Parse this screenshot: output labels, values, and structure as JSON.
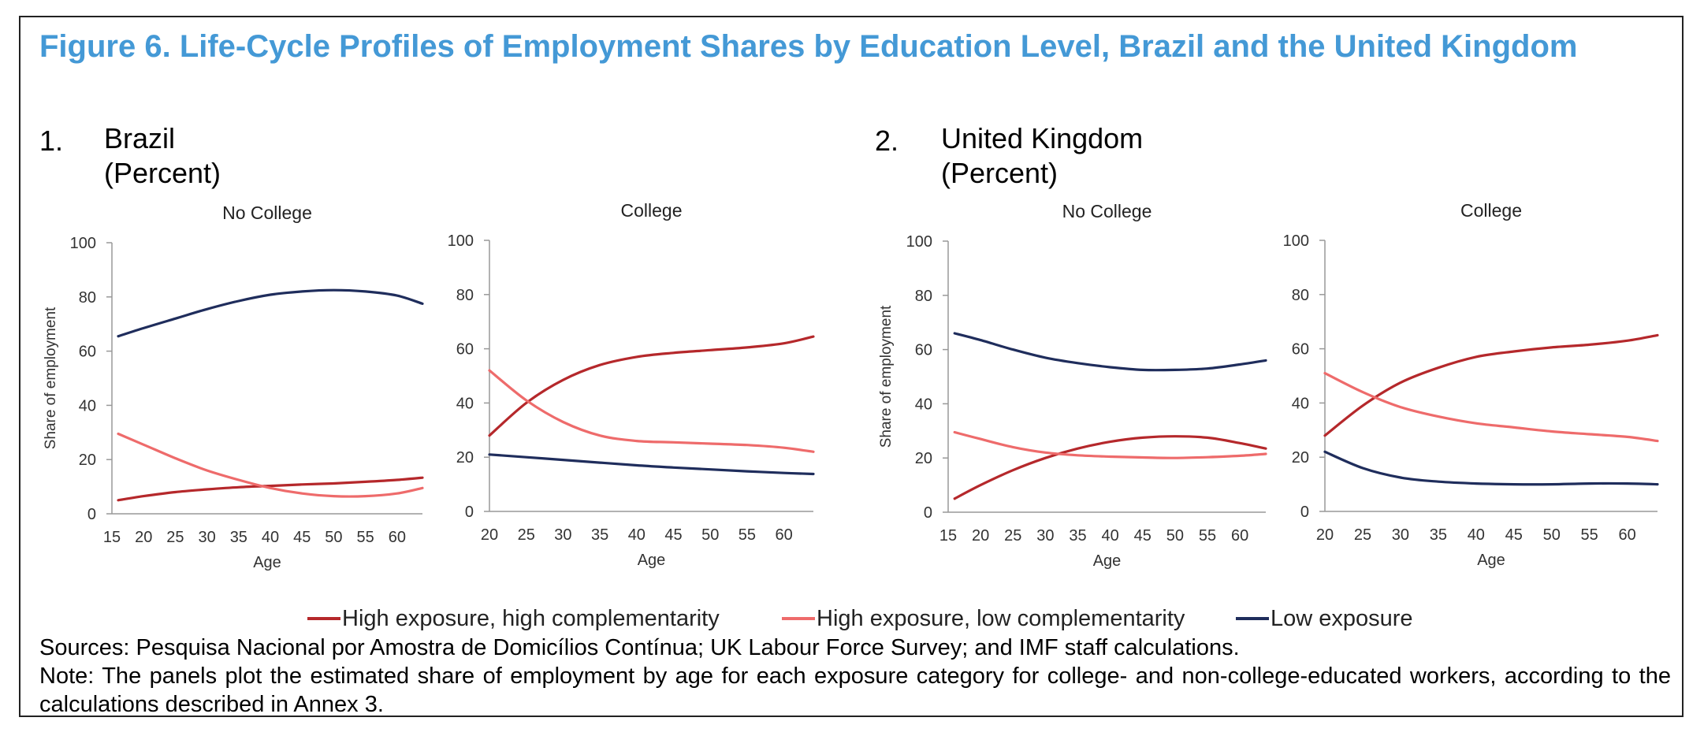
{
  "figure": {
    "title": "Figure 6. Life-Cycle Profiles of Employment Shares by Education Level, Brazil and the United Kingdom",
    "panels": [
      {
        "number": "1.",
        "name": "Brazil",
        "unit": "(Percent)"
      },
      {
        "number": "2.",
        "name": "United Kingdom",
        "unit": "(Percent)"
      }
    ],
    "sources": "Sources: Pesquisa Nacional por Amostra de Domicílios Contínua; UK Labour Force Survey; and IMF staff calculations.",
    "note": "Note: The panels plot the estimated share of employment by age for each exposure category for college- and non-college-educated workers, according to the calculations described in Annex 3."
  },
  "legend": [
    {
      "label": "High exposure, high complementarity",
      "color": "#b5282b"
    },
    {
      "label": "High exposure, low complementarity",
      "color": "#ee6b6b"
    },
    {
      "label": "Low exposure",
      "color": "#1f2d5c"
    }
  ],
  "chart_data": [
    {
      "type": "line",
      "panel": "Brazil",
      "title": "No College",
      "xlabel": "Age",
      "ylabel": "Share of employment",
      "xticks": [
        15,
        20,
        25,
        30,
        35,
        40,
        45,
        50,
        55,
        60
      ],
      "yticks": [
        0,
        20,
        40,
        60,
        80,
        100
      ],
      "xlim": [
        15,
        64
      ],
      "ylim": [
        0,
        100
      ],
      "x": [
        16,
        20,
        25,
        30,
        35,
        40,
        45,
        50,
        55,
        60,
        64
      ],
      "series": [
        {
          "name": "High exposure, high complementarity",
          "values": [
            5,
            6.5,
            8,
            9,
            9.8,
            10.3,
            10.8,
            11.2,
            11.8,
            12.5,
            13.3
          ]
        },
        {
          "name": "High exposure, low complementarity",
          "values": [
            29.5,
            25.5,
            20.5,
            16,
            12.5,
            9.5,
            7.5,
            6.5,
            6.5,
            7.5,
            9.5
          ]
        },
        {
          "name": "Low exposure",
          "values": [
            65.5,
            68.5,
            72,
            75.5,
            78.5,
            80.8,
            82,
            82.5,
            82,
            80.5,
            77.5
          ]
        }
      ]
    },
    {
      "type": "line",
      "panel": "Brazil",
      "title": "College",
      "xlabel": "Age",
      "ylabel": "",
      "xticks": [
        20,
        25,
        30,
        35,
        40,
        45,
        50,
        55,
        60
      ],
      "yticks": [
        0,
        20,
        40,
        60,
        80,
        100
      ],
      "xlim": [
        20,
        64
      ],
      "ylim": [
        0,
        100
      ],
      "x": [
        20,
        25,
        30,
        35,
        40,
        45,
        50,
        55,
        60,
        64
      ],
      "series": [
        {
          "name": "High exposure, high complementarity",
          "values": [
            28,
            40,
            48.5,
            54,
            57,
            58.5,
            59.5,
            60.5,
            62,
            64.5
          ]
        },
        {
          "name": "High exposure, low complementarity",
          "values": [
            52,
            41,
            33,
            28,
            26,
            25.5,
            25,
            24.5,
            23.5,
            22
          ]
        },
        {
          "name": "Low exposure",
          "values": [
            21,
            20,
            19,
            18,
            17,
            16.2,
            15.5,
            14.8,
            14.2,
            13.8
          ]
        }
      ]
    },
    {
      "type": "line",
      "panel": "United Kingdom",
      "title": "No College",
      "xlabel": "Age",
      "ylabel": "Share of employment",
      "xticks": [
        15,
        20,
        25,
        30,
        35,
        40,
        45,
        50,
        55,
        60
      ],
      "yticks": [
        0,
        20,
        40,
        60,
        80,
        100
      ],
      "xlim": [
        15,
        64
      ],
      "ylim": [
        0,
        100
      ],
      "x": [
        16,
        20,
        25,
        30,
        35,
        40,
        45,
        50,
        55,
        60,
        64
      ],
      "series": [
        {
          "name": "High exposure, high complementarity",
          "values": [
            5,
            10,
            15.5,
            20,
            23.5,
            26,
            27.5,
            28,
            27.5,
            25.5,
            23.5
          ]
        },
        {
          "name": "High exposure, low complementarity",
          "values": [
            29.5,
            27,
            24,
            22,
            21,
            20.5,
            20.2,
            20,
            20.3,
            20.8,
            21.5
          ]
        },
        {
          "name": "Low exposure",
          "values": [
            66,
            63.5,
            60,
            57,
            55,
            53.5,
            52.5,
            52.5,
            53,
            54.5,
            56
          ]
        }
      ]
    },
    {
      "type": "line",
      "panel": "United Kingdom",
      "title": "College",
      "xlabel": "Age",
      "ylabel": "",
      "xticks": [
        20,
        25,
        30,
        35,
        40,
        45,
        50,
        55,
        60
      ],
      "yticks": [
        0,
        20,
        40,
        60,
        80,
        100
      ],
      "xlim": [
        20,
        64
      ],
      "ylim": [
        0,
        100
      ],
      "x": [
        20,
        25,
        30,
        35,
        40,
        45,
        50,
        55,
        60,
        64
      ],
      "series": [
        {
          "name": "High exposure, high complementarity",
          "values": [
            28,
            39,
            47.5,
            53,
            57,
            59,
            60.5,
            61.5,
            63,
            65
          ]
        },
        {
          "name": "High exposure, low complementarity",
          "values": [
            51,
            44,
            38.5,
            35,
            32.5,
            31,
            29.5,
            28.5,
            27.5,
            26
          ]
        },
        {
          "name": "Low exposure",
          "values": [
            22,
            16,
            12.5,
            11,
            10.3,
            10,
            10,
            10.3,
            10.3,
            10
          ]
        }
      ]
    }
  ]
}
